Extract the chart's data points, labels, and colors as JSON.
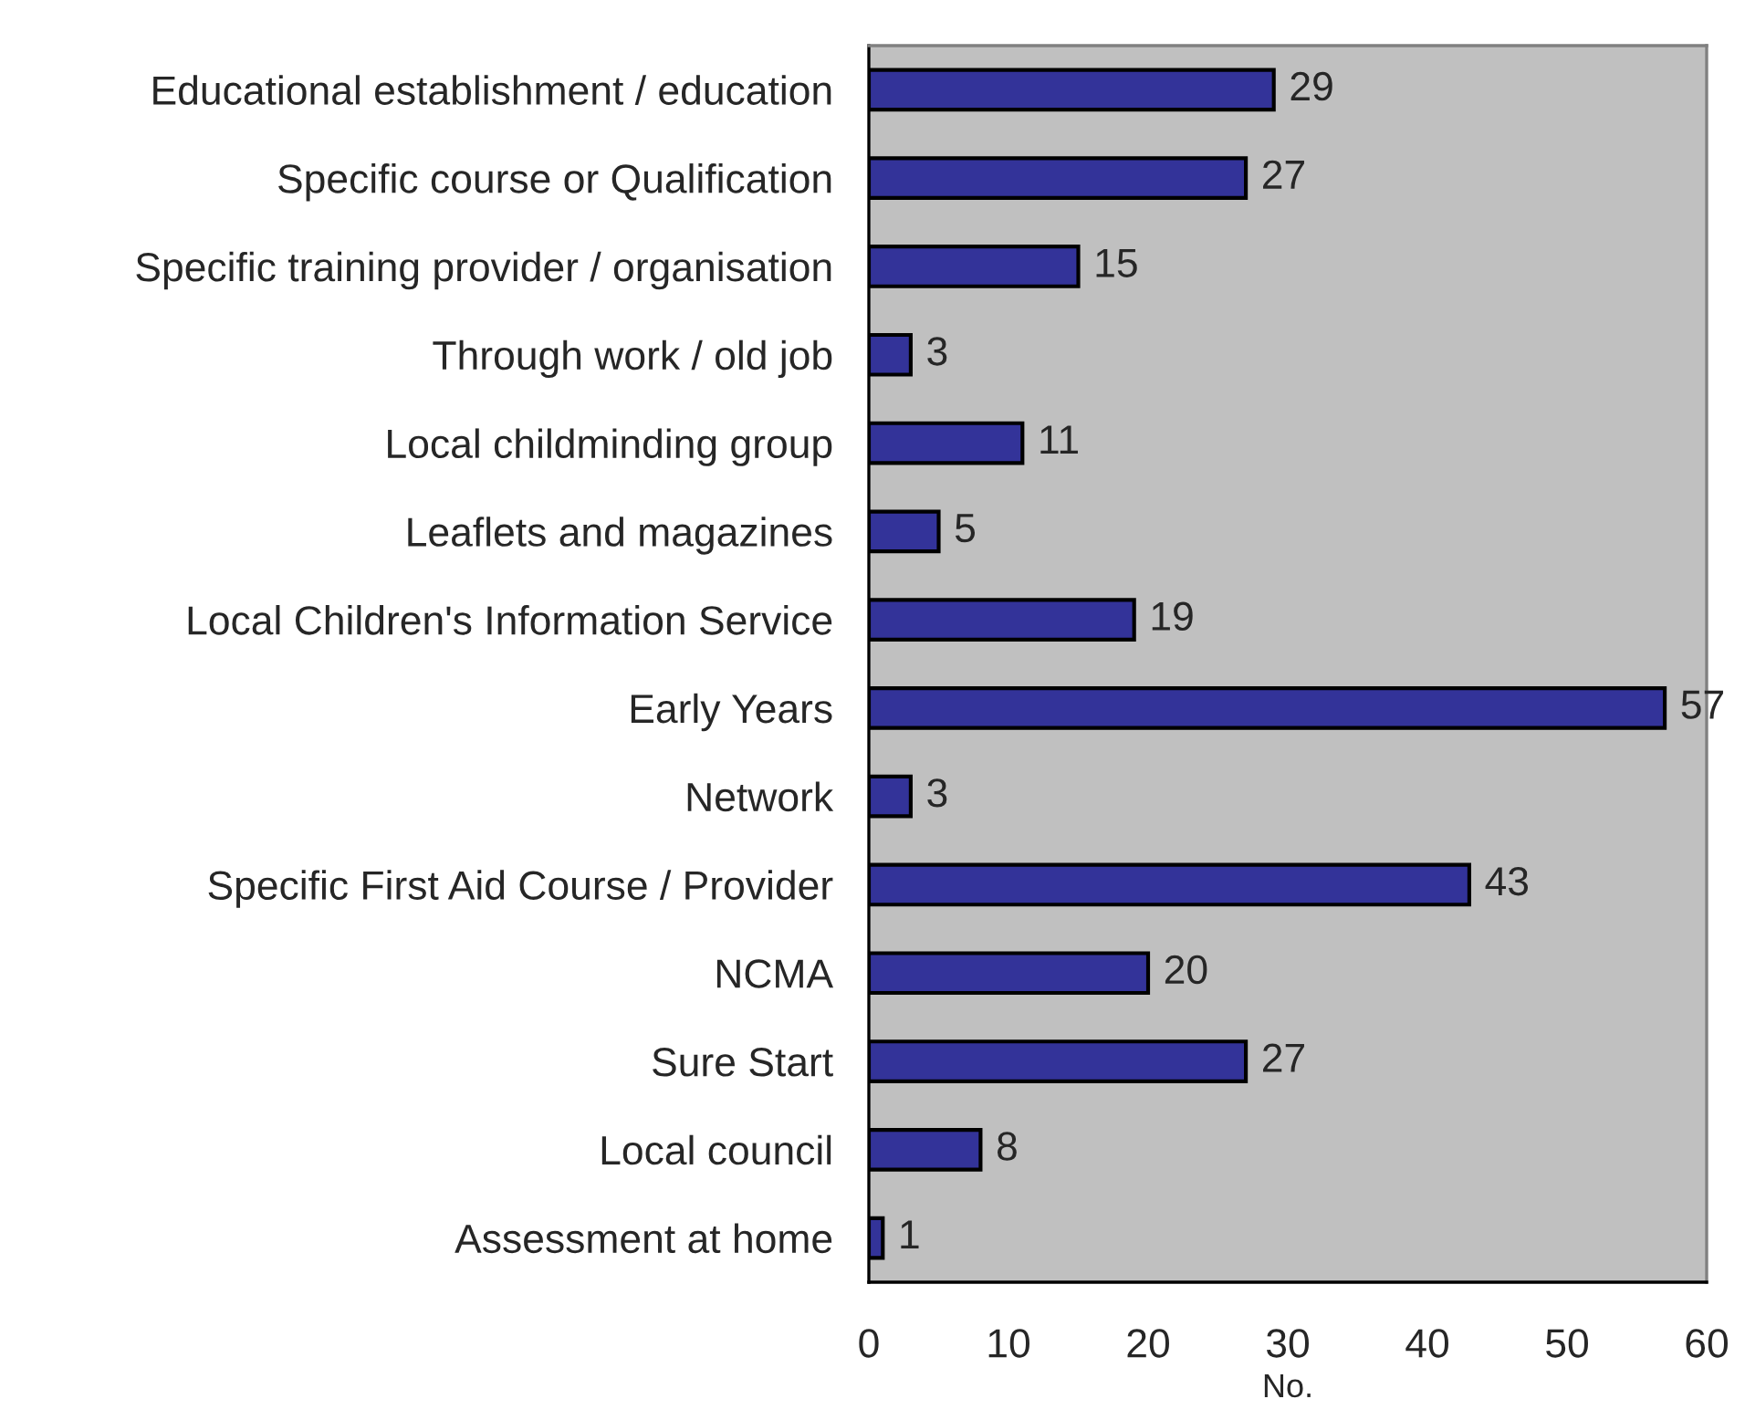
{
  "chart_data": {
    "type": "bar",
    "orientation": "horizontal",
    "xlabel": "No.",
    "categories": [
      "Educational establishment / education",
      "Specific course or Qualification",
      "Specific training provider / organisation",
      "Through work / old job",
      "Local childminding group",
      "Leaflets and magazines",
      "Local Children's Information Service",
      "Early Years",
      "Network",
      "Specific First Aid Course / Provider",
      "NCMA",
      "Sure Start",
      "Local council",
      "Assessment at home"
    ],
    "values": [
      29,
      27,
      15,
      3,
      11,
      5,
      19,
      57,
      3,
      43,
      20,
      27,
      8,
      1
    ],
    "color": "#333399",
    "xlim": [
      0,
      60
    ],
    "xticks": [
      0,
      10,
      20,
      30,
      40,
      50,
      60
    ],
    "data_labels": true
  }
}
